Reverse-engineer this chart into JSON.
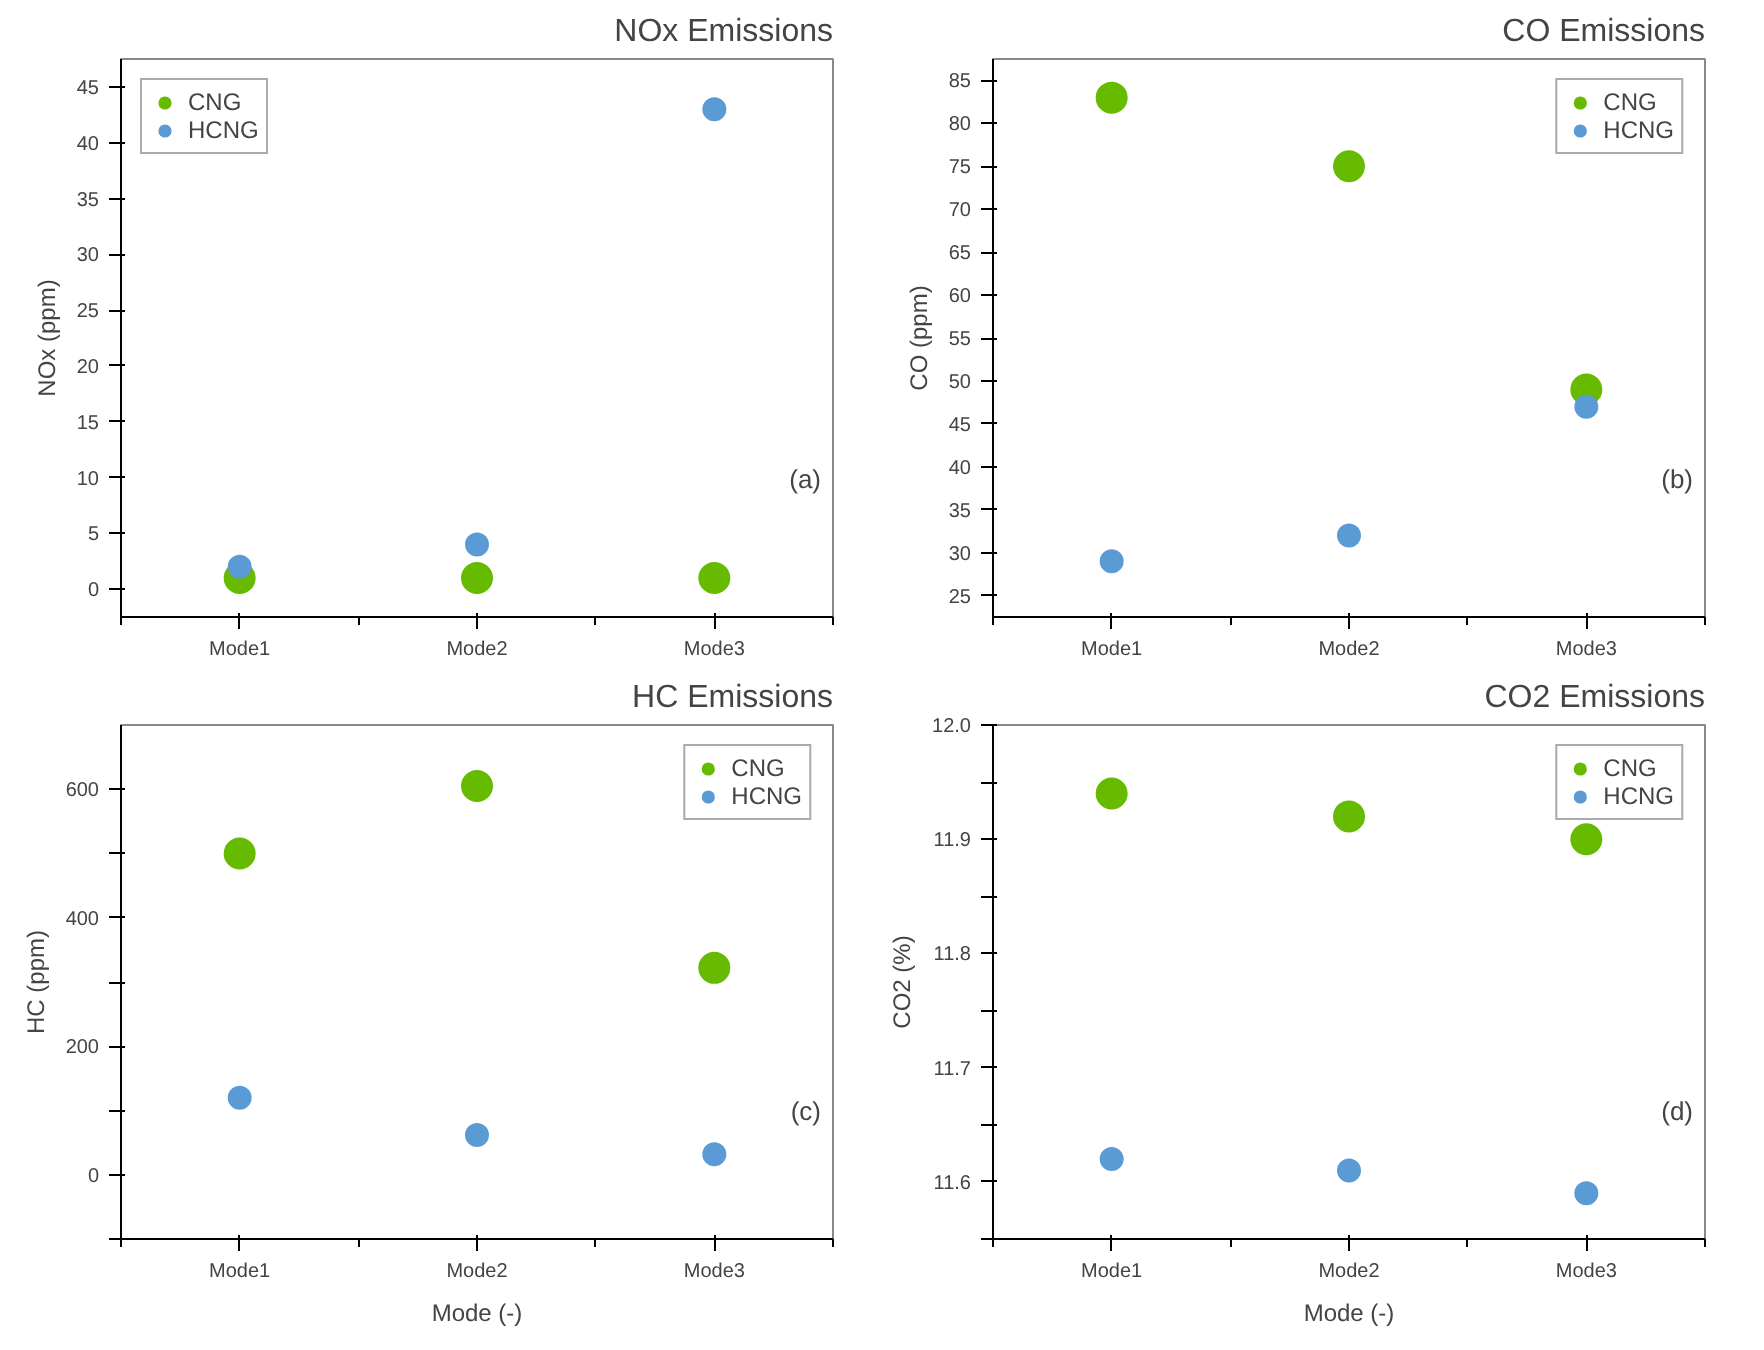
{
  "chart_data": [
    {
      "type": "scatter",
      "title": "NOx Emissions",
      "ylabel": "NOx (ppm)",
      "categories": [
        "Mode1",
        "Mode2",
        "Mode3"
      ],
      "ylim": [
        -2.5,
        47.5
      ],
      "yticks": [
        0,
        5,
        10,
        15,
        20,
        25,
        30,
        35,
        40,
        45
      ],
      "legend": "top left",
      "marker": "circle",
      "annotations": [
        "(a)"
      ],
      "series": [
        {
          "name": "CNG",
          "color": "#66bb00",
          "values": [
            1,
            1,
            1
          ]
        },
        {
          "name": "HCNG",
          "color": "#5b9bd5",
          "values": [
            2,
            4,
            43
          ]
        }
      ]
    },
    {
      "type": "scatter",
      "title": "CO Emissions",
      "ylabel": "CO (ppm)",
      "categories": [
        "Mode1",
        "Mode2",
        "Mode3"
      ],
      "ylim": [
        22.5,
        87.5
      ],
      "yticks": [
        25,
        30,
        35,
        40,
        45,
        50,
        55,
        60,
        65,
        70,
        75,
        80,
        85
      ],
      "legend": "top right",
      "marker": "circle",
      "annotations": [
        "(b)"
      ],
      "series": [
        {
          "name": "CNG",
          "color": "#66bb00",
          "values": [
            83,
            75,
            49
          ]
        },
        {
          "name": "HCNG",
          "color": "#5b9bd5",
          "values": [
            29,
            32,
            47
          ]
        }
      ]
    },
    {
      "type": "scatter",
      "title": "HC Emissions",
      "xlabel": "Mode (-)",
      "ylabel": "HC (ppm)",
      "categories": [
        "Mode1",
        "Mode2",
        "Mode3"
      ],
      "ylim": [
        -100,
        700
      ],
      "yticks": [
        {
          "value": -100,
          "label": null
        },
        0,
        {
          "value": 100,
          "label": null
        },
        200,
        {
          "value": 300,
          "label": null
        },
        400,
        {
          "value": 500,
          "label": null
        },
        600
      ],
      "legend": "top right",
      "marker": "circle",
      "annotations": [
        "(c)"
      ],
      "series": [
        {
          "name": "CNG",
          "color": "#66bb00",
          "values": [
            500,
            605,
            322
          ]
        },
        {
          "name": "HCNG",
          "color": "#5b9bd5",
          "values": [
            120,
            62,
            32
          ]
        }
      ]
    },
    {
      "type": "scatter",
      "title": "CO2 Emissions",
      "xlabel": "Mode (-)",
      "ylabel": "CO2 (%)",
      "categories": [
        "Mode1",
        "Mode2",
        "Mode3"
      ],
      "ylim": [
        11.55,
        12.0
      ],
      "yticks": [
        {
          "value": 11.55,
          "label": null
        },
        11.6,
        {
          "value": 11.65,
          "label": null
        },
        11.7,
        {
          "value": 11.75,
          "label": null
        },
        11.8,
        {
          "value": 11.85,
          "label": null
        },
        11.9,
        {
          "value": 11.95,
          "label": null
        },
        {
          "value": 12.0,
          "label": "12.0"
        }
      ],
      "legend": "top right",
      "marker": "circle",
      "annotations": [
        "(d)"
      ],
      "series": [
        {
          "name": "CNG",
          "color": "#66bb00",
          "values": [
            11.94,
            11.92,
            11.9
          ]
        },
        {
          "name": "HCNG",
          "color": "#5b9bd5",
          "values": [
            11.62,
            11.61,
            11.59
          ]
        }
      ]
    }
  ]
}
